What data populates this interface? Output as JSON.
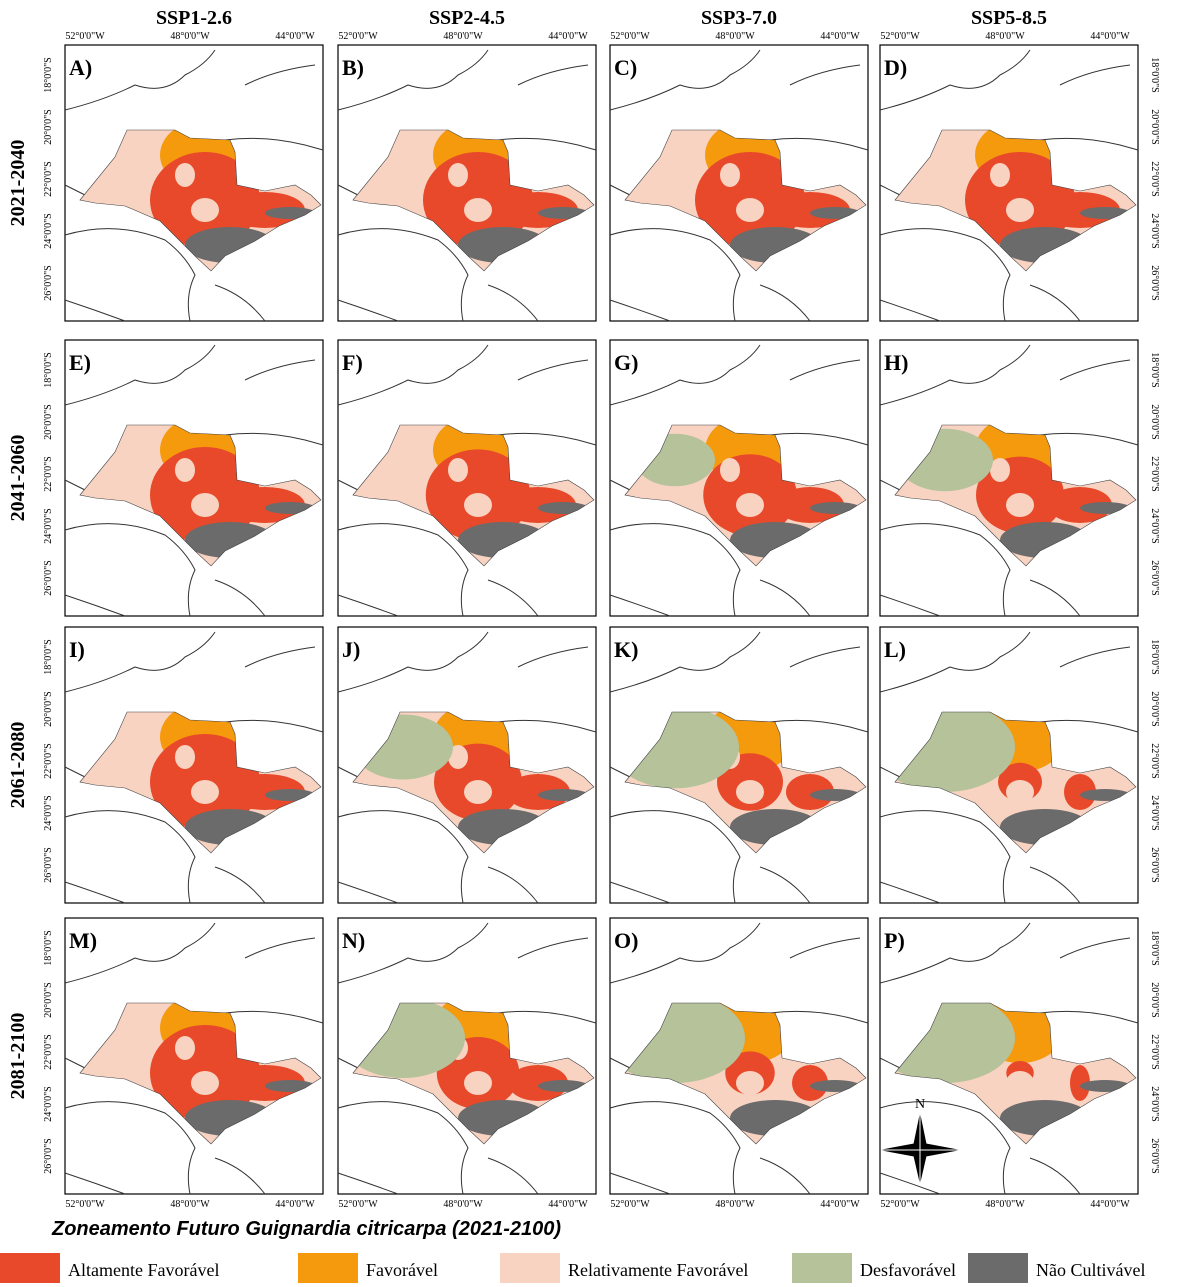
{
  "columns": [
    "SSP1-2.6",
    "SSP2-4.5",
    "SSP3-7.0",
    "SSP5-8.5"
  ],
  "rows": [
    "2021-2040",
    "2041-2060",
    "2061-2080",
    "2081-2100"
  ],
  "panels": [
    "A)",
    "B)",
    "C)",
    "D)",
    "E)",
    "F)",
    "G)",
    "H)",
    "I)",
    "J)",
    "K)",
    "L)",
    "M)",
    "N)",
    "O)",
    "P)"
  ],
  "lon_labels": [
    "52°0'0\"W",
    "48°0'0\"W",
    "44°0'0\"W"
  ],
  "lat_labels": [
    "18°0'0\"S",
    "20°0'0\"S",
    "22°0'0\"S",
    "24°0'0\"S",
    "26°0'0\"S"
  ],
  "north": "N",
  "title": "Zoneamento Futuro Guignardia citricarpa (2021-2100)",
  "legend": [
    {
      "label": "Altamente Favorável",
      "color": "#e8492a"
    },
    {
      "label": "Favorável",
      "color": "#f59a0c"
    },
    {
      "label": "Relativamente Favorável",
      "color": "#f9d3c2"
    },
    {
      "label": "Desfavorável",
      "color": "#b5c29a"
    },
    {
      "label": "Não Cultivável",
      "color": "#6b6b6b"
    }
  ]
}
